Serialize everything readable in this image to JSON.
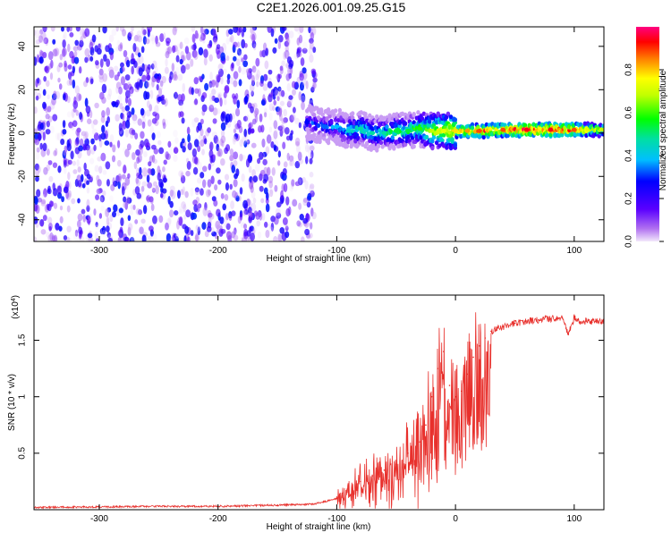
{
  "title": "C2E1.2026.001.09.25.G15",
  "colors": {
    "spectrogram_points": "#7a2ce8",
    "ridge_high": "#e02020",
    "snr_line": "#e8302c"
  },
  "chart_data": [
    {
      "type": "heatmap",
      "xlabel": "Height of straight line (km)",
      "ylabel": "Frequency (Hz)",
      "xlim": [
        -355,
        125
      ],
      "ylim": [
        -50,
        49
      ],
      "xticks": [
        -300,
        -200,
        -100,
        0,
        100
      ],
      "yticks": [
        -40,
        -20,
        0,
        20,
        40
      ],
      "colorbar": {
        "label": "Normalized spectral amplitude",
        "range": [
          0,
          1
        ],
        "ticks": [
          0.0,
          0.2,
          0.4,
          0.6,
          0.8
        ]
      },
      "ridge": {
        "x": [
          -125,
          -110,
          -100,
          -90,
          -80,
          -70,
          -60,
          -50,
          -40,
          -30,
          -20,
          -10,
          0,
          10,
          20,
          40,
          60,
          80,
          100,
          125
        ],
        "y": [
          5,
          3,
          3,
          1,
          2,
          0,
          0,
          1,
          1,
          2,
          1,
          1,
          1,
          1,
          1,
          1.5,
          1.5,
          1.5,
          1.5,
          1.5
        ],
        "amplitude": [
          0.3,
          0.35,
          0.4,
          0.45,
          0.5,
          0.5,
          0.5,
          0.55,
          0.55,
          0.6,
          0.7,
          0.75,
          0.8,
          0.85,
          0.9,
          0.9,
          0.95,
          0.95,
          0.9,
          0.7
        ]
      }
    },
    {
      "type": "line",
      "xlabel": "Height of straight line (km)",
      "ylabel": "SNR (10 * v/v)",
      "yscale_label": "(x10",
      "yscale_exponent": "4",
      "xlim": [
        -355,
        125
      ],
      "ylim": [
        0,
        1.9
      ],
      "xticks": [
        -300,
        -200,
        -100,
        0,
        100
      ],
      "yticks": [
        0.5,
        1.0,
        1.5
      ],
      "series": [
        {
          "x": [
            -355,
            -300,
            -250,
            -200,
            -150,
            -120,
            -110,
            -100,
            -95,
            -90,
            -80,
            -70,
            -60,
            -50,
            -40,
            -30,
            -25,
            -20,
            -15,
            -10,
            -5,
            0,
            5,
            10,
            15,
            20,
            25,
            30,
            40,
            50,
            60,
            70,
            80,
            90,
            95,
            100,
            105,
            110,
            115,
            125
          ],
          "y": [
            0.02,
            0.025,
            0.03,
            0.03,
            0.04,
            0.05,
            0.07,
            0.1,
            0.15,
            0.2,
            0.25,
            0.3,
            0.35,
            0.4,
            0.5,
            0.6,
            0.75,
            1.0,
            1.25,
            1.4,
            1.1,
            1.0,
            1.05,
            1.2,
            1.35,
            1.45,
            1.52,
            1.58,
            1.62,
            1.65,
            1.67,
            1.68,
            1.69,
            1.7,
            1.55,
            1.7,
            1.66,
            1.67,
            1.66,
            1.67
          ]
        }
      ]
    }
  ]
}
